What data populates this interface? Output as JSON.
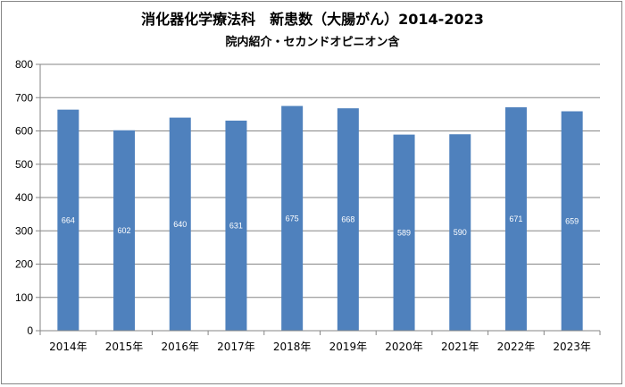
{
  "chart_data": {
    "type": "bar",
    "title": "消化器化学療法科　新患数（大腸がん）2014-2023",
    "subtitle": "院内紹介・セカンドオピニオン含",
    "categories": [
      "2014年",
      "2015年",
      "2016年",
      "2017年",
      "2018年",
      "2019年",
      "2020年",
      "2021年",
      "2022年",
      "2023年"
    ],
    "series": [
      {
        "values": [
          664,
          602,
          640,
          631,
          675,
          668,
          589,
          590,
          671,
          659
        ],
        "color": "#4f81bd"
      }
    ],
    "data_labels": true,
    "ylim": [
      0,
      800
    ],
    "yticks": [
      0,
      100,
      200,
      300,
      400,
      500,
      600,
      700,
      800
    ],
    "grid": true,
    "legend": "none",
    "xlabel": "",
    "ylabel": ""
  }
}
